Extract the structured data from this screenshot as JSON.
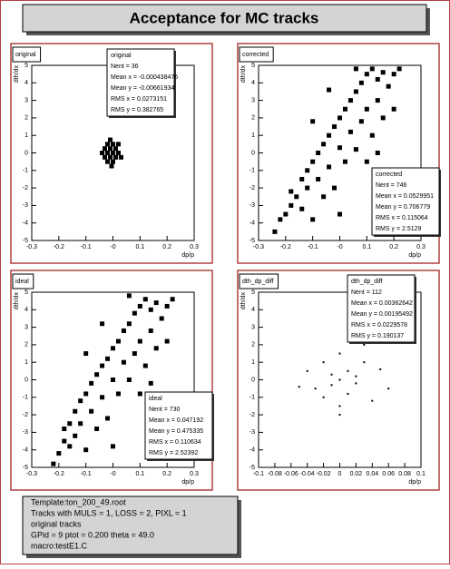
{
  "header": {
    "title": "Acceptance for MC tracks"
  },
  "info": {
    "lines": [
      "Template:ton_200_49.root",
      "Tracks with  MULS = 1, LOSS = 2, PIXL = 1",
      "original tracks",
      "GPid =  9   ptot =  0.200  theta =  49.0",
      "macro:testE1.C"
    ]
  },
  "chart_data": [
    {
      "type": "scatter",
      "title": "original",
      "xlabel": "dp/p",
      "ylabel": "dth/dx",
      "color": "#000000",
      "stats": {
        "name": "original",
        "lines": [
          "Nent = 36",
          "Mean x = -0.000438476",
          "Mean y = -0.00661934",
          "RMS x = 0.0273151",
          "RMS y = 0.382765"
        ]
      },
      "x": [
        -0.04,
        -0.03,
        -0.03,
        -0.02,
        -0.02,
        -0.02,
        -0.01,
        -0.01,
        -0.01,
        0,
        0,
        0,
        0.01,
        0.01,
        0.02,
        0.02,
        0.03,
        -0.005
      ],
      "y": [
        0,
        0.25,
        -0.25,
        0.5,
        0,
        -0.5,
        0.25,
        -0.25,
        0.75,
        0,
        0.5,
        -0.5,
        0.25,
        -0.25,
        0,
        0.5,
        -0.25,
        -0.75
      ],
      "xlim": [
        -0.3,
        0.3
      ],
      "xticks": [
        -0.3,
        -0.2,
        -0.1,
        {
          "value": 0,
          "label": "-0"
        },
        0.1,
        0.2,
        0.3
      ],
      "ylim": [
        -5,
        5
      ],
      "yticks": [
        -5,
        -4,
        -3,
        -2,
        -1,
        0,
        1,
        2,
        3,
        4,
        5
      ]
    },
    {
      "type": "scatter",
      "title": "corrected",
      "xlabel": "dp/p",
      "ylabel": "dth/dx",
      "color": "#000000",
      "stats": {
        "name": "corrected",
        "lines": [
          "Nent = 746",
          "Mean x = 0.0529951",
          "Mean y = 0.706779",
          "RMS x = 0.115064",
          "RMS y = 2.5129"
        ]
      },
      "x": [
        -0.24,
        -0.22,
        -0.2,
        -0.18,
        -0.18,
        -0.16,
        -0.14,
        -0.14,
        -0.12,
        -0.12,
        -0.1,
        -0.1,
        -0.08,
        -0.08,
        -0.06,
        -0.06,
        -0.04,
        -0.04,
        -0.02,
        -0.02,
        0,
        0,
        0.02,
        0.02,
        0.04,
        0.04,
        0.06,
        0.06,
        0.08,
        0.08,
        0.1,
        0.1,
        0.12,
        0.12,
        0.14,
        0.14,
        0.16,
        0.16,
        0.18,
        0.2,
        0.22,
        -0.1,
        0,
        0.1,
        0.06,
        -0.04,
        0.14,
        0.2
      ],
      "y": [
        -4.5,
        -3.8,
        -3.5,
        -3,
        -2.2,
        -2.5,
        -1.5,
        -3.2,
        -1,
        -2,
        -0.5,
        -3.8,
        0,
        -1.5,
        0.5,
        -2.5,
        1,
        -0.8,
        1.5,
        -2,
        2,
        0.3,
        2.5,
        -0.5,
        3,
        1.2,
        3.5,
        0.2,
        4,
        1.8,
        4.5,
        2.5,
        4.8,
        1,
        4.2,
        3,
        4.6,
        2,
        3.8,
        4.5,
        4.8,
        1.8,
        -3.5,
        -0.5,
        4.8,
        3.6,
        0,
        2.5
      ],
      "xlim": [
        -0.3,
        0.3
      ],
      "xticks": [
        -0.3,
        -0.2,
        -0.1,
        {
          "value": 0,
          "label": "-0"
        },
        0.1,
        0.2,
        0.3
      ],
      "ylim": [
        -5,
        5
      ],
      "yticks": [
        -5,
        -4,
        -3,
        -2,
        -1,
        0,
        1,
        2,
        3,
        4,
        5
      ]
    },
    {
      "type": "scatter",
      "title": "ideal",
      "xlabel": "dp/p",
      "ylabel": "dth/dx",
      "color": "#000000",
      "stats": {
        "name": "ideal",
        "lines": [
          "Nent = 730",
          "Mean x = 0.047192",
          "Mean y = 0.475335",
          "RMS x = 0.110634",
          "RMS y = 2.52392"
        ]
      },
      "x": [
        -0.22,
        -0.2,
        -0.18,
        -0.18,
        -0.16,
        -0.16,
        -0.14,
        -0.14,
        -0.12,
        -0.12,
        -0.1,
        -0.1,
        -0.08,
        -0.08,
        -0.06,
        -0.06,
        -0.04,
        -0.04,
        -0.02,
        -0.02,
        0,
        0,
        0.02,
        0.02,
        0.04,
        0.04,
        0.06,
        0.06,
        0.08,
        0.08,
        0.1,
        0.1,
        0.12,
        0.12,
        0.14,
        0.14,
        0.16,
        0.16,
        0.18,
        0.2,
        0.22,
        -0.1,
        0,
        0.1,
        0.06,
        -0.04,
        0.14,
        0.2
      ],
      "y": [
        -4.8,
        -4.2,
        -3.5,
        -2.8,
        -2.5,
        -3.8,
        -1.8,
        -3.2,
        -1.2,
        -2.5,
        -0.8,
        -4,
        -0.2,
        -1.8,
        0.3,
        -2.8,
        0.8,
        -1,
        1.2,
        -2.2,
        1.8,
        0,
        2.2,
        -0.8,
        2.8,
        1,
        3.2,
        0,
        3.8,
        1.5,
        4.2,
        2.2,
        4.6,
        0.8,
        4,
        2.8,
        4.4,
        1.8,
        3.5,
        4.2,
        4.6,
        1.5,
        -3.8,
        -0.8,
        4.8,
        3.2,
        -0.2,
        2.2
      ],
      "xlim": [
        -0.3,
        0.3
      ],
      "xticks": [
        -0.3,
        -0.2,
        -0.1,
        {
          "value": 0,
          "label": "-0"
        },
        0.1,
        0.2,
        0.3
      ],
      "ylim": [
        -5,
        5
      ],
      "yticks": [
        -5,
        -4,
        -3,
        -2,
        -1,
        0,
        1,
        2,
        3,
        4,
        5
      ]
    },
    {
      "type": "scatter",
      "title": "dth_dp_diff",
      "xlabel": "dp/p",
      "ylabel": "dth/dx",
      "color": "#000000",
      "stats": {
        "name": "dth_dp_diff",
        "lines": [
          "Nent = 112",
          "Mean x = 0.00362642",
          "Mean y = 0.00195492",
          "RMS x = 0.0229578",
          "RMS y = 0.190137"
        ]
      },
      "x": [
        -0.04,
        -0.03,
        -0.02,
        -0.02,
        -0.01,
        -0.01,
        0,
        0,
        0,
        0.01,
        0.01,
        0.02,
        0.02,
        0.03,
        0.04,
        0.05,
        -0.05,
        0.06,
        0,
        0.03
      ],
      "y": [
        0.5,
        -0.5,
        1,
        -1,
        0.3,
        -0.3,
        0,
        1.5,
        -1.5,
        0.5,
        -0.8,
        0.2,
        -0.2,
        1,
        -1.2,
        0.6,
        -0.4,
        -0.5,
        -2,
        2
      ],
      "xlim": [
        -0.1,
        0.1
      ],
      "xticks": [
        -0.1,
        -0.08,
        -0.06,
        -0.04,
        -0.02,
        0,
        0.02,
        0.04,
        0.06,
        0.08,
        0.1
      ],
      "ylim": [
        -5,
        5
      ],
      "yticks": [
        -5,
        -4,
        -3,
        -2,
        -1,
        0,
        1,
        2,
        3,
        4,
        5
      ]
    }
  ]
}
